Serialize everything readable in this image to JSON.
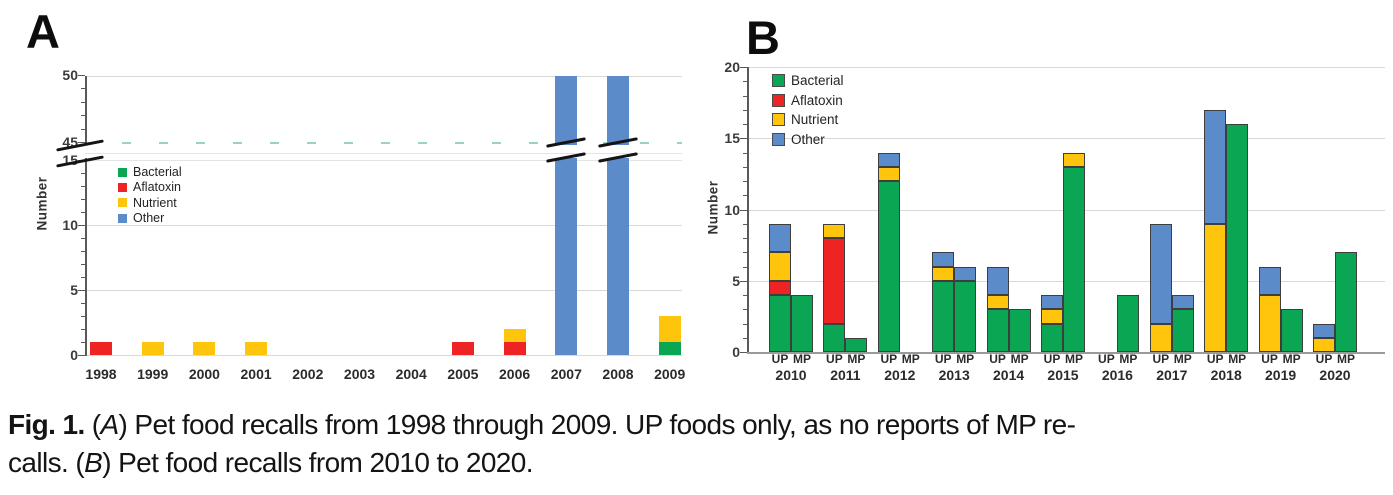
{
  "figure": {
    "caption": {
      "lines": [
        [
          {
            "t": "Fig. 1.",
            "b": true
          },
          {
            "t": "("
          },
          {
            "t": "A",
            "i": true
          },
          {
            "t": ") Pet food recalls from 1998 through 2009. UP foods only, as no reports of MP re-"
          }
        ],
        [
          {
            "t": "calls. ("
          },
          {
            "t": "B",
            "i": true
          },
          {
            "t": ") Pet food recalls from 2010 to 2020."
          }
        ]
      ]
    }
  },
  "palette": {
    "Bacterial": "#0ba653",
    "Aflatoxin": "#ee2424",
    "Nutrient": "#ffc40c",
    "Other": "#5c8bc9",
    "gridline": "#d9d9d9",
    "axis": "#595959",
    "axis_text": "#3b3b3b",
    "bar_outline": "#3e3e3e",
    "break_dash_teal": "#9ad2c8"
  },
  "chart_data": [
    {
      "id": "A",
      "type": "bar",
      "subtype": "stacked-vertical",
      "panel_label": "A",
      "ylabel": "Number",
      "legend": [
        "Bacterial",
        "Aflatoxin",
        "Nutrient",
        "Other"
      ],
      "legend_position": "inside top-left",
      "grid": "horizontal only",
      "axis_break": {
        "lower": 15,
        "upper": 45,
        "note": "y-axis broken between 15 and 45; 2007 and 2008 bars pass through the break to the 50 line"
      },
      "yticks_lower": [
        0,
        5,
        10,
        15
      ],
      "yticks_upper": [
        45,
        50
      ],
      "ylim_lower": [
        0,
        15
      ],
      "ylim_upper": [
        45,
        50
      ],
      "categories": [
        "1998",
        "1999",
        "2000",
        "2001",
        "2002",
        "2003",
        "2004",
        "2005",
        "2006",
        "2007",
        "2008",
        "2009"
      ],
      "bars": [
        {
          "year": "1998",
          "segments": [
            [
              "Aflatoxin",
              1
            ]
          ]
        },
        {
          "year": "1999",
          "segments": [
            [
              "Nutrient",
              1
            ]
          ]
        },
        {
          "year": "2000",
          "segments": [
            [
              "Nutrient",
              1
            ]
          ]
        },
        {
          "year": "2001",
          "segments": [
            [
              "Nutrient",
              1
            ]
          ]
        },
        {
          "year": "2002",
          "segments": []
        },
        {
          "year": "2003",
          "segments": []
        },
        {
          "year": "2004",
          "segments": []
        },
        {
          "year": "2005",
          "segments": [
            [
              "Aflatoxin",
              1
            ]
          ]
        },
        {
          "year": "2006",
          "segments": [
            [
              "Aflatoxin",
              1
            ],
            [
              "Nutrient",
              1
            ]
          ]
        },
        {
          "year": "2007",
          "segments": [
            [
              "Other",
              50
            ]
          ],
          "truncated": true
        },
        {
          "year": "2008",
          "segments": [
            [
              "Other",
              50
            ]
          ],
          "truncated": true
        },
        {
          "year": "2009",
          "segments": [
            [
              "Bacterial",
              1
            ],
            [
              "Nutrient",
              2
            ]
          ]
        }
      ]
    },
    {
      "id": "B",
      "type": "bar",
      "subtype": "grouped-stacked-vertical",
      "panel_label": "B",
      "ylabel": "Number",
      "legend": [
        "Bacterial",
        "Aflatoxin",
        "Nutrient",
        "Other"
      ],
      "legend_position": "inside top-left",
      "grid": "horizontal only",
      "ylim": [
        0,
        20
      ],
      "yticks": [
        0,
        5,
        10,
        15,
        20
      ],
      "sub_categories": [
        "UP",
        "MP"
      ],
      "groups": [
        {
          "year": "2010",
          "up": [
            [
              "Bacterial",
              4
            ],
            [
              "Aflatoxin",
              1
            ],
            [
              "Nutrient",
              2
            ],
            [
              "Other",
              2
            ]
          ],
          "mp": [
            [
              "Bacterial",
              4
            ]
          ]
        },
        {
          "year": "2011",
          "up": [
            [
              "Bacterial",
              2
            ],
            [
              "Aflatoxin",
              6
            ],
            [
              "Nutrient",
              1
            ]
          ],
          "mp": [
            [
              "Bacterial",
              1
            ]
          ]
        },
        {
          "year": "2012",
          "up": [
            [
              "Bacterial",
              12
            ],
            [
              "Nutrient",
              1
            ],
            [
              "Other",
              1
            ]
          ],
          "mp": []
        },
        {
          "year": "2013",
          "up": [
            [
              "Bacterial",
              5
            ],
            [
              "Nutrient",
              1
            ],
            [
              "Other",
              1
            ]
          ],
          "mp": [
            [
              "Bacterial",
              5
            ],
            [
              "Other",
              1
            ]
          ]
        },
        {
          "year": "2014",
          "up": [
            [
              "Bacterial",
              3
            ],
            [
              "Nutrient",
              1
            ],
            [
              "Other",
              2
            ]
          ],
          "mp": [
            [
              "Bacterial",
              3
            ]
          ]
        },
        {
          "year": "2015",
          "up": [
            [
              "Bacterial",
              2
            ],
            [
              "Nutrient",
              1
            ],
            [
              "Other",
              1
            ]
          ],
          "mp": [
            [
              "Bacterial",
              13
            ],
            [
              "Nutrient",
              1
            ]
          ]
        },
        {
          "year": "2016",
          "up": [],
          "mp": [
            [
              "Bacterial",
              4
            ]
          ]
        },
        {
          "year": "2017",
          "up": [
            [
              "Nutrient",
              2
            ],
            [
              "Other",
              7
            ]
          ],
          "mp": [
            [
              "Bacterial",
              3
            ],
            [
              "Other",
              1
            ]
          ]
        },
        {
          "year": "2018",
          "up": [
            [
              "Nutrient",
              9
            ],
            [
              "Other",
              8
            ]
          ],
          "mp": [
            [
              "Bacterial",
              16
            ]
          ]
        },
        {
          "year": "2019",
          "up": [
            [
              "Nutrient",
              4
            ],
            [
              "Other",
              2
            ]
          ],
          "mp": [
            [
              "Bacterial",
              3
            ]
          ]
        },
        {
          "year": "2020",
          "up": [
            [
              "Nutrient",
              1
            ],
            [
              "Other",
              1
            ]
          ],
          "mp": [
            [
              "Bacterial",
              7
            ]
          ]
        }
      ]
    }
  ]
}
